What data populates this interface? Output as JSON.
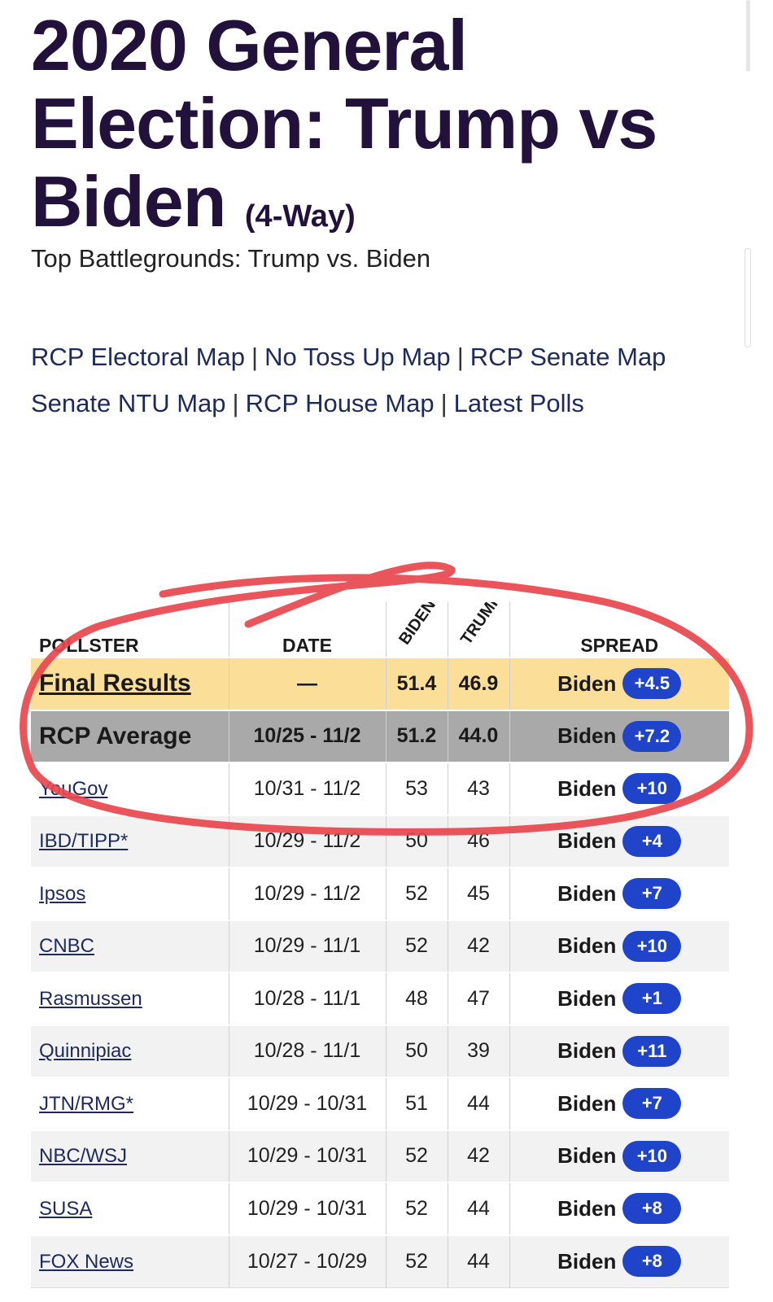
{
  "header": {
    "title": "2020 General Election: Trump vs Biden",
    "title_suffix": "(4-Way)",
    "subtitle": "Top Battlegrounds: Trump vs. Biden"
  },
  "nav_links": [
    "RCP Electoral Map",
    "No Toss Up Map",
    "RCP Senate Map",
    "Senate NTU Map",
    "RCP House Map",
    "Latest Polls"
  ],
  "nav_separator": "|",
  "table": {
    "columns": {
      "pollster": "POLLSTER",
      "date": "DATE",
      "biden": "BIDEN (D)",
      "trump": "TRUMP (R)",
      "spread": "SPREAD"
    },
    "rows": [
      {
        "pollster": "Final Results",
        "date": "—",
        "biden": "51.4",
        "trump": "46.9",
        "winner": "Biden",
        "margin": "+4.5"
      },
      {
        "pollster": "RCP Average",
        "date": "10/25 - 11/2",
        "biden": "51.2",
        "trump": "44.0",
        "winner": "Biden",
        "margin": "+7.2"
      },
      {
        "pollster": "YouGov",
        "date": "10/31 - 11/2",
        "biden": "53",
        "trump": "43",
        "winner": "Biden",
        "margin": "+10"
      },
      {
        "pollster": "IBD/TIPP*",
        "date": "10/29 - 11/2",
        "biden": "50",
        "trump": "46",
        "winner": "Biden",
        "margin": "+4"
      },
      {
        "pollster": "Ipsos",
        "date": "10/29 - 11/2",
        "biden": "52",
        "trump": "45",
        "winner": "Biden",
        "margin": "+7"
      },
      {
        "pollster": "CNBC",
        "date": "10/29 - 11/1",
        "biden": "52",
        "trump": "42",
        "winner": "Biden",
        "margin": "+10"
      },
      {
        "pollster": "Rasmussen",
        "date": "10/28 - 11/1",
        "biden": "48",
        "trump": "47",
        "winner": "Biden",
        "margin": "+1"
      },
      {
        "pollster": "Quinnipiac",
        "date": "10/28 - 11/1",
        "biden": "50",
        "trump": "39",
        "winner": "Biden",
        "margin": "+11"
      },
      {
        "pollster": "JTN/RMG*",
        "date": "10/29 - 10/31",
        "biden": "51",
        "trump": "44",
        "winner": "Biden",
        "margin": "+7"
      },
      {
        "pollster": "NBC/WSJ",
        "date": "10/29 - 10/31",
        "biden": "52",
        "trump": "42",
        "winner": "Biden",
        "margin": "+10"
      },
      {
        "pollster": "SUSA",
        "date": "10/29 - 10/31",
        "biden": "52",
        "trump": "44",
        "winner": "Biden",
        "margin": "+8"
      },
      {
        "pollster": "FOX News",
        "date": "10/27 - 10/29",
        "biden": "52",
        "trump": "44",
        "winner": "Biden",
        "margin": "+8"
      }
    ]
  },
  "colors": {
    "title": "#22113b",
    "link": "#1e2a5c",
    "final_row": "#fbdf98",
    "avg_row": "#a9a9a9",
    "spread_pill": "#1f44c9",
    "annotation": "#e8474d"
  }
}
